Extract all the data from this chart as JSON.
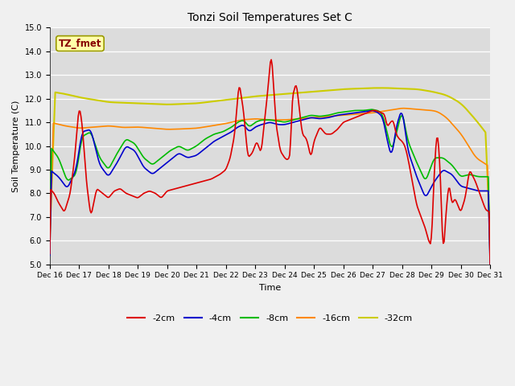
{
  "title": "Tonzi Soil Temperatures Set C",
  "ylabel": "Soil Temperature (C)",
  "xlabel": "Time",
  "annotation": "TZ_fmet",
  "ylim": [
    5.0,
    15.0
  ],
  "yticks": [
    5.0,
    6.0,
    7.0,
    8.0,
    9.0,
    10.0,
    11.0,
    12.0,
    13.0,
    14.0,
    15.0
  ],
  "xtick_labels": [
    "Dec 16",
    "Dec 17",
    "Dec 18",
    "Dec 19",
    "Dec 20",
    "Dec 21",
    "Dec 22",
    "Dec 23",
    "Dec 24",
    "Dec 25",
    "Dec 26",
    "Dec 27",
    "Dec 28",
    "Dec 29",
    "Dec 30",
    "Dec 31"
  ],
  "colors": {
    "2cm": "#dd0000",
    "4cm": "#0000cc",
    "8cm": "#00bb00",
    "16cm": "#ff8800",
    "32cm": "#cccc00"
  },
  "legend_labels": [
    "-2cm",
    "-4cm",
    "-8cm",
    "-16cm",
    "-32cm"
  ],
  "fig_bg": "#f0f0f0",
  "ax_bg": "#dcdcdc",
  "grid_color": "#ffffff",
  "annotation_bg": "#ffffaa",
  "annotation_fg": "#880000",
  "annotation_border": "#999900"
}
